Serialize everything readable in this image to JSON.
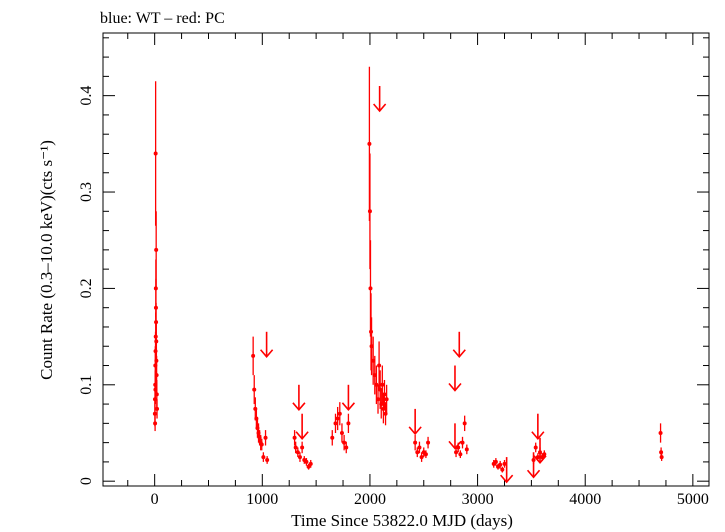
{
  "chart_data": {
    "type": "scatter",
    "title": "blue: WT – red: PC",
    "xlabel": "Time Since 53822.0 MJD (days)",
    "ylabel": "Count Rate (0.3–10.0 keV)(cts s⁻¹)",
    "xlim": [
      -480,
      5150
    ],
    "ylim": [
      -0.005,
      0.465
    ],
    "x_ticks": [
      0,
      1000,
      2000,
      3000,
      4000,
      5000
    ],
    "x_tick_labels": [
      "0",
      "1000",
      "2000",
      "3000",
      "4000",
      "5000"
    ],
    "y_ticks": [
      0,
      0.1,
      0.2,
      0.3,
      0.4
    ],
    "y_tick_labels": [
      "0",
      "0.1",
      "0.2",
      "0.3",
      "0.4"
    ],
    "grid": false,
    "series": [
      {
        "color": "#ff0000",
        "points": [
          [
            2,
            0.07,
            0.013
          ],
          [
            3,
            0.085,
            0.015
          ],
          [
            4,
            0.06,
            0.008
          ],
          [
            5,
            0.1,
            0.015
          ],
          [
            6,
            0.12,
            0.02
          ],
          [
            7,
            0.095,
            0.015
          ],
          [
            8,
            0.135,
            0.02
          ],
          [
            9,
            0.34,
            0.075
          ],
          [
            10,
            0.15,
            0.025
          ],
          [
            11,
            0.2,
            0.03
          ],
          [
            12,
            0.18,
            0.03
          ],
          [
            13,
            0.165,
            0.02
          ],
          [
            14,
            0.24,
            0.04
          ],
          [
            15,
            0.145,
            0.02
          ],
          [
            16,
            0.125,
            0.02
          ],
          [
            18,
            0.11,
            0.02
          ],
          [
            20,
            0.09,
            0.015
          ],
          [
            22,
            0.075,
            0.01
          ],
          [
            915,
            0.13,
            0.02
          ],
          [
            925,
            0.095,
            0.015
          ],
          [
            935,
            0.075,
            0.012
          ],
          [
            945,
            0.065,
            0.01
          ],
          [
            955,
            0.055,
            0.01
          ],
          [
            965,
            0.05,
            0.01
          ],
          [
            975,
            0.045,
            0.008
          ],
          [
            985,
            0.04,
            0.008
          ],
          [
            995,
            0.038,
            0.006
          ],
          [
            1010,
            0.025,
            0.005
          ],
          [
            1030,
            0.045,
            0.008
          ],
          [
            1045,
            0.022,
            0.004
          ],
          [
            1300,
            0.045,
            0.008
          ],
          [
            1310,
            0.035,
            0.006
          ],
          [
            1330,
            0.03,
            0.005
          ],
          [
            1350,
            0.025,
            0.005
          ],
          [
            1370,
            0.035,
            0.006
          ],
          [
            1390,
            0.022,
            0.004
          ],
          [
            1410,
            0.02,
            0.004
          ],
          [
            1430,
            0.015,
            0.003
          ],
          [
            1450,
            0.018,
            0.004
          ],
          [
            1650,
            0.045,
            0.008
          ],
          [
            1680,
            0.06,
            0.01
          ],
          [
            1700,
            0.065,
            0.012
          ],
          [
            1720,
            0.07,
            0.012
          ],
          [
            1740,
            0.05,
            0.01
          ],
          [
            1760,
            0.04,
            0.008
          ],
          [
            1780,
            0.035,
            0.006
          ],
          [
            1800,
            0.06,
            0.01
          ],
          [
            1995,
            0.35,
            0.08
          ],
          [
            2000,
            0.28,
            0.06
          ],
          [
            2005,
            0.2,
            0.05
          ],
          [
            2010,
            0.155,
            0.04
          ],
          [
            2015,
            0.14,
            0.03
          ],
          [
            2030,
            0.125,
            0.025
          ],
          [
            2045,
            0.11,
            0.02
          ],
          [
            2060,
            0.1,
            0.02
          ],
          [
            2075,
            0.085,
            0.015
          ],
          [
            2085,
            0.12,
            0.025
          ],
          [
            2095,
            0.095,
            0.02
          ],
          [
            2105,
            0.08,
            0.015
          ],
          [
            2115,
            0.1,
            0.02
          ],
          [
            2125,
            0.075,
            0.015
          ],
          [
            2135,
            0.09,
            0.015
          ],
          [
            2145,
            0.07,
            0.012
          ],
          [
            2155,
            0.085,
            0.015
          ],
          [
            2420,
            0.04,
            0.008
          ],
          [
            2440,
            0.03,
            0.005
          ],
          [
            2460,
            0.035,
            0.006
          ],
          [
            2480,
            0.025,
            0.005
          ],
          [
            2500,
            0.03,
            0.005
          ],
          [
            2520,
            0.028,
            0.004
          ],
          [
            2540,
            0.04,
            0.006
          ],
          [
            2800,
            0.03,
            0.005
          ],
          [
            2820,
            0.035,
            0.005
          ],
          [
            2840,
            0.028,
            0.004
          ],
          [
            2860,
            0.04,
            0.006
          ],
          [
            2880,
            0.06,
            0.008
          ],
          [
            2900,
            0.033,
            0.005
          ],
          [
            3150,
            0.018,
            0.004
          ],
          [
            3170,
            0.02,
            0.004
          ],
          [
            3190,
            0.015,
            0.003
          ],
          [
            3210,
            0.017,
            0.004
          ],
          [
            3230,
            0.012,
            0.003
          ],
          [
            3250,
            0.018,
            0.004
          ],
          [
            3520,
            0.022,
            0.004
          ],
          [
            3540,
            0.035,
            0.005
          ],
          [
            3560,
            0.025,
            0.004
          ],
          [
            3580,
            0.03,
            0.005
          ],
          [
            3600,
            0.025,
            0.004
          ],
          [
            3620,
            0.028,
            0.004
          ],
          [
            4700,
            0.05,
            0.01
          ],
          [
            4705,
            0.03,
            0.005
          ],
          [
            4710,
            0.025,
            0.004
          ]
        ],
        "upper_limits": [
          [
            1040,
            0.155
          ],
          [
            1340,
            0.1
          ],
          [
            1370,
            0.07
          ],
          [
            1800,
            0.1
          ],
          [
            2090,
            0.41
          ],
          [
            2420,
            0.075
          ],
          [
            2790,
            0.12
          ],
          [
            2830,
            0.155
          ],
          [
            2790,
            0.06
          ],
          [
            3270,
            0.025
          ],
          [
            3520,
            0.03
          ],
          [
            3560,
            0.07
          ],
          [
            3580,
            0.045
          ]
        ]
      }
    ]
  }
}
